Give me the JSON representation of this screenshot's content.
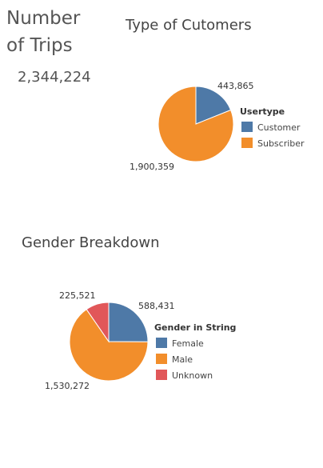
{
  "kpi": {
    "title": "Number of Trips",
    "value": "2,344,224"
  },
  "chart_data": [
    {
      "type": "pie",
      "title": "Type of Cutomers",
      "legend_title": "Usertype",
      "legend_position": "right",
      "slices": [
        {
          "label": "Customer",
          "value": 443865,
          "value_label": "443,865",
          "color": "#4e79a7"
        },
        {
          "label": "Subscriber",
          "value": 1900359,
          "value_label": "1,900,359",
          "color": "#f28e2b"
        }
      ]
    },
    {
      "type": "pie",
      "title": "Gender Breakdown",
      "legend_title": "Gender in String",
      "legend_position": "right",
      "slices": [
        {
          "label": "Female",
          "value": 588431,
          "value_label": "588,431",
          "color": "#4e79a7"
        },
        {
          "label": "Male",
          "value": 1530272,
          "value_label": "1,530,272",
          "color": "#f28e2b"
        },
        {
          "label": "Unknown",
          "value": 225521,
          "value_label": "225,521",
          "color": "#e15759"
        }
      ]
    }
  ]
}
